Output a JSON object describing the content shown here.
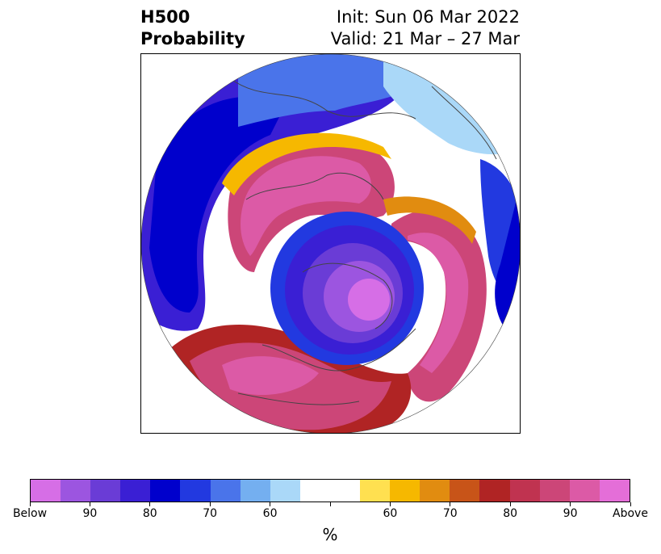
{
  "title": {
    "left_line1": "H500",
    "left_line2": "Probability",
    "right_line1": "Init: Sun 06 Mar 2022",
    "right_line2": "Valid: 21 Mar – 27 Mar"
  },
  "map": {
    "projection": "north-polar-stereographic",
    "features": [
      {
        "name": "low-anomaly-center",
        "category": "below",
        "label": ""
      },
      {
        "name": "ridge-ring",
        "category": "above",
        "label": ""
      }
    ]
  },
  "colorbar": {
    "colors": [
      "#d66ee6",
      "#9c55e0",
      "#6a3cd6",
      "#3a1fd4",
      "#0000cc",
      "#2239e0",
      "#4a74ea",
      "#74aff0",
      "#aad8f8",
      "#ffffff",
      "#ffffff",
      "#ffe050",
      "#f6b800",
      "#e18c10",
      "#c85418",
      "#b02424",
      "#c03350",
      "#cc4678",
      "#dc5aa6",
      "#e46ed8"
    ],
    "tick_labels": [
      "Below",
      "90",
      "80",
      "70",
      "60",
      "",
      "60",
      "70",
      "80",
      "90",
      "Above"
    ],
    "unit_label": "%"
  }
}
